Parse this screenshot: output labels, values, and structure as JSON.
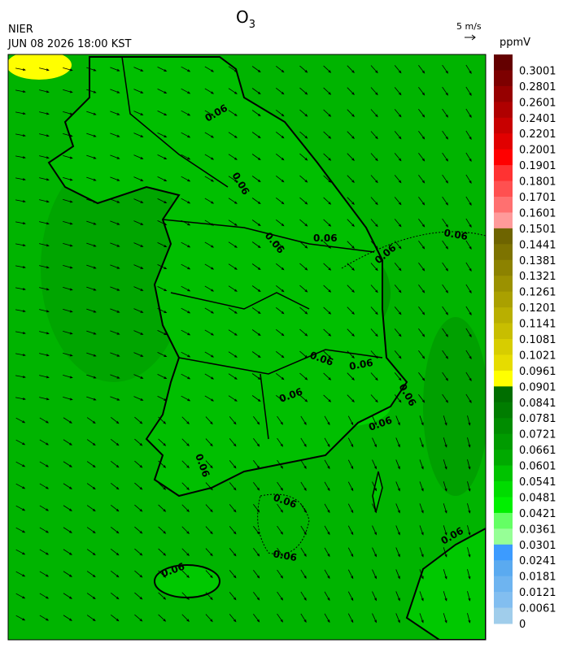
{
  "header": {
    "agency": "NIER",
    "timestamp": "JUN 08 2026 18:00 KST",
    "title": {
      "text": "O",
      "subscript": "3"
    },
    "wind_scale": "5 m/s"
  },
  "colorbar": {
    "unit": "ppmV",
    "labels": [
      "0.3001",
      "0.2801",
      "0.2601",
      "0.2401",
      "0.2201",
      "0.2001",
      "0.1901",
      "0.1801",
      "0.1701",
      "0.1601",
      "0.1501",
      "0.1441",
      "0.1381",
      "0.1321",
      "0.1261",
      "0.1201",
      "0.1141",
      "0.1081",
      "0.1021",
      "0.0961",
      "0.0901",
      "0.0841",
      "0.0781",
      "0.0721",
      "0.0661",
      "0.0601",
      "0.0541",
      "0.0481",
      "0.0421",
      "0.0361",
      "0.0301",
      "0.0241",
      "0.0181",
      "0.0121",
      "0.0061",
      "0"
    ],
    "colors": [
      "#640000",
      "#7d0000",
      "#960000",
      "#af0000",
      "#c80000",
      "#e10000",
      "#ff0000",
      "#ff3232",
      "#ff5050",
      "#ff7070",
      "#ff9a9a",
      "#6e6400",
      "#7d7300",
      "#8c8200",
      "#9b9100",
      "#aaa000",
      "#b9af00",
      "#c8be00",
      "#d7cd00",
      "#e6dc00",
      "#ffff00",
      "#006e00",
      "#007d00",
      "#008c00",
      "#009b00",
      "#00aa00",
      "#00c300",
      "#00dc00",
      "#00f000",
      "#64ff64",
      "#96ff96",
      "#3c9bff",
      "#5aaaf0",
      "#6eb4f0",
      "#82bef0",
      "#a0cdeb"
    ]
  },
  "map": {
    "contour_labels": [
      "0.06",
      "0.06",
      "0.06",
      "0.06",
      "0.06",
      "0.06",
      "0.06",
      "0.06",
      "0.06",
      "0.06",
      "0.06",
      "0.06",
      "0.06",
      "0.06",
      "0.06",
      "0.06"
    ]
  }
}
